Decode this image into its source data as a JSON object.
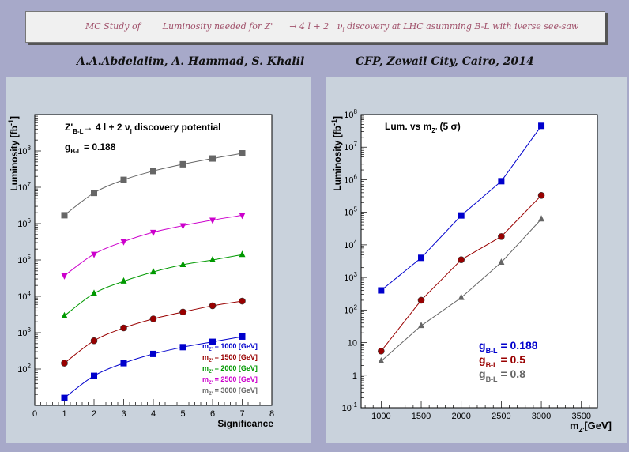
{
  "header": {
    "title": "MC Study of        Luminosity needed for Z'      → 4 l + 2   ν",
    "title_sub": "l",
    "title_tail": " discovery at LHC asumming B-L with iverse see-saw",
    "authors": "A.A.Abdelalim, A. Hammad, S. Khalil",
    "affiliation": "CFP, Zewail City, Cairo, 2014"
  },
  "chart_data": [
    {
      "type": "line",
      "log_y": true,
      "xlabel": "Significance",
      "ylabel": "Luminosity [fb",
      "ylabel_sup": "-1",
      "ylabel_tail": "]",
      "xlim": [
        0,
        8
      ],
      "ylim": [
        10,
        1000000000
      ],
      "x_ticks": [
        "0",
        "1",
        "2",
        "3",
        "4",
        "5",
        "6",
        "7",
        "8"
      ],
      "y_ticks": [
        {
          "v": 100,
          "mant": "10",
          "exp": "2"
        },
        {
          "v": 1000,
          "mant": "10",
          "exp": "3"
        },
        {
          "v": 10000,
          "mant": "10",
          "exp": "4"
        },
        {
          "v": 100000,
          "mant": "10",
          "exp": "5"
        },
        {
          "v": 1000000,
          "mant": "10",
          "exp": "6"
        },
        {
          "v": 10000000,
          "mant": "10",
          "exp": "7"
        },
        {
          "v": 100000000,
          "mant": "10",
          "exp": "8"
        }
      ],
      "annotation_title": {
        "a": "Z'",
        "b": "B-L",
        "c": "→ 4 l + 2   ν",
        "d": "l",
        "e": " discovery potential"
      },
      "annotation_coupling": {
        "a": "g",
        "b": "B-L",
        "c": " = 0.188"
      },
      "x": [
        1,
        2,
        3,
        4,
        5,
        6,
        7
      ],
      "series": [
        {
          "name": "= 1000 [GeV]",
          "color": "#0000cc",
          "marker": "square",
          "values": [
            16,
            65,
            145,
            260,
            400,
            560,
            780
          ]
        },
        {
          "name": "= 1500 [GeV]",
          "color": "#990000",
          "marker": "circle",
          "values": [
            145,
            600,
            1350,
            2400,
            3700,
            5500,
            7400
          ]
        },
        {
          "name": "= 2000 [GeV]",
          "color": "#009900",
          "marker": "triangle-up",
          "values": [
            2900,
            12000,
            26000,
            47000,
            74000,
            100000,
            140000
          ]
        },
        {
          "name": "= 2500 [GeV]",
          "color": "#cc00cc",
          "marker": "triangle-down",
          "values": [
            37000,
            145000,
            320000,
            580000,
            880000,
            1250000,
            1700000
          ]
        },
        {
          "name": "= 3000 [GeV]",
          "color": "#666666",
          "marker": "square",
          "values": [
            1700000,
            7000000,
            16000000,
            28000000,
            43000000,
            62000000,
            86000000
          ]
        }
      ],
      "legend_prefix": "m",
      "legend_sub": "Z'",
      "legend_position": "bottom-right"
    },
    {
      "type": "line",
      "log_y": true,
      "xlabel": "m",
      "xlabel_sub": "Z'",
      "xlabel_tail": "[GeV]",
      "ylabel": "Luminosity [fb",
      "ylabel_sup": "-1",
      "ylabel_tail": "]",
      "xlim": [
        750,
        3700
      ],
      "ylim": [
        0.1,
        100000000
      ],
      "x_ticks": [
        "1000",
        "1500",
        "2000",
        "2500",
        "3000",
        "3500"
      ],
      "y_ticks": [
        {
          "v": 0.1,
          "mant": "10",
          "exp": "-1"
        },
        {
          "v": 1,
          "mant": "1",
          "exp": ""
        },
        {
          "v": 10,
          "mant": "10",
          "exp": ""
        },
        {
          "v": 100,
          "mant": "10",
          "exp": "2"
        },
        {
          "v": 1000,
          "mant": "10",
          "exp": "3"
        },
        {
          "v": 10000,
          "mant": "10",
          "exp": "4"
        },
        {
          "v": 100000,
          "mant": "10",
          "exp": "5"
        },
        {
          "v": 1000000,
          "mant": "10",
          "exp": "6"
        },
        {
          "v": 10000000,
          "mant": "10",
          "exp": "7"
        },
        {
          "v": 100000000,
          "mant": "10",
          "exp": "8"
        }
      ],
      "annotation_title": {
        "a": "Lum. vs m",
        "b": "Z'",
        "c": " (5  σ)"
      },
      "x": [
        1000,
        1500,
        2000,
        2500,
        3000
      ],
      "series": [
        {
          "name": " = 0.188",
          "color": "#0000cc",
          "marker": "square",
          "values": [
            400,
            4000,
            80000,
            900000,
            45000000
          ]
        },
        {
          "name": " = 0.5",
          "color": "#990000",
          "marker": "circle",
          "values": [
            5.5,
            200,
            3500,
            18000,
            330000
          ]
        },
        {
          "name": " = 0.8",
          "color": "#666666",
          "marker": "triangle-up",
          "values": [
            2.7,
            33,
            240,
            2900,
            62000
          ]
        }
      ],
      "legend_prefix": "g",
      "legend_sub": "B-L",
      "legend_position": "bottom-right"
    }
  ]
}
